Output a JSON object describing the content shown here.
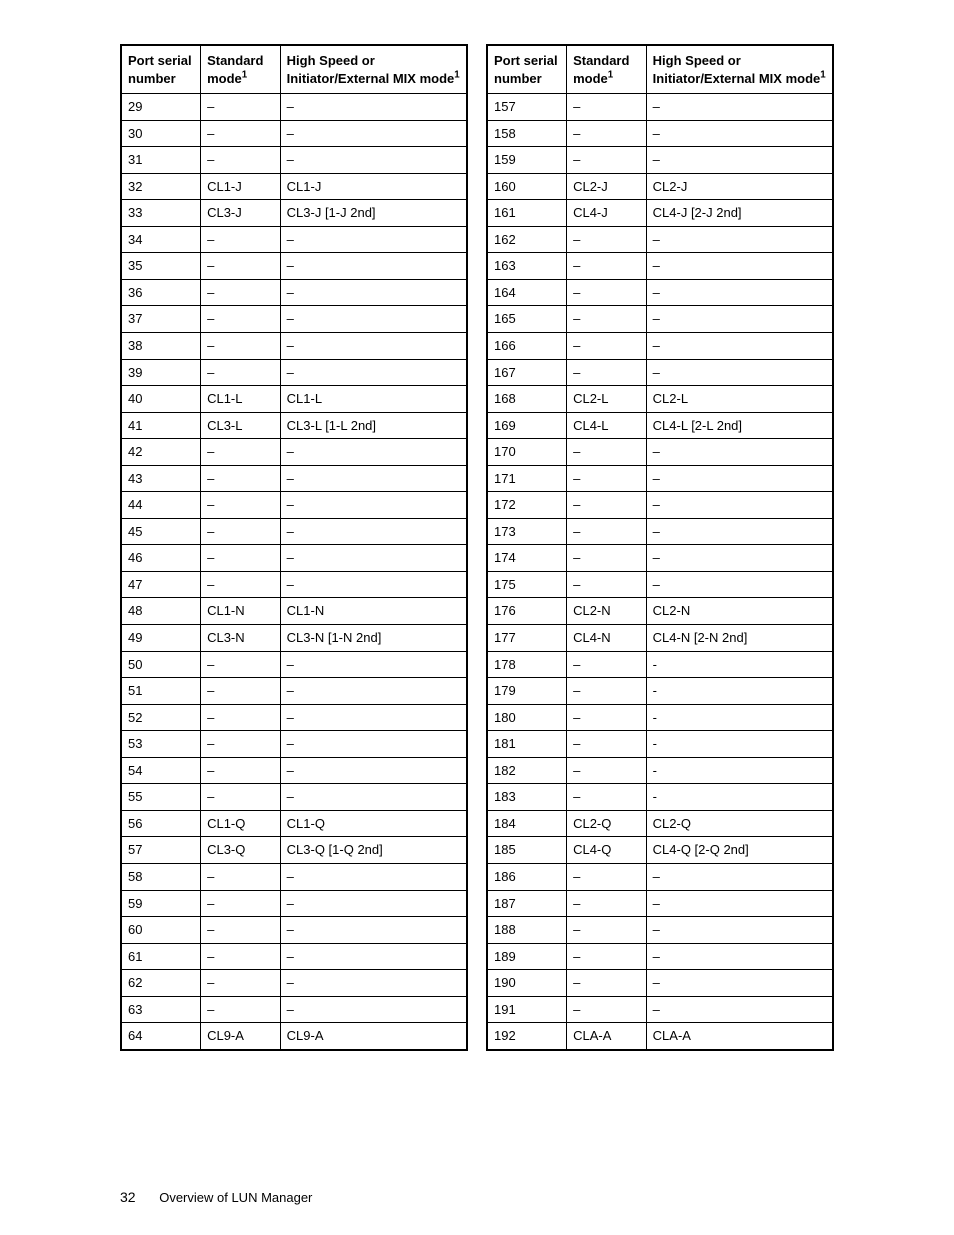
{
  "table": {
    "columns": [
      {
        "label": "Port serial number",
        "width_pct": 23
      },
      {
        "label": "Standard mode",
        "sup": "1",
        "width_pct": 23
      },
      {
        "label": "High Speed or Initiator/External MIX mode",
        "sup": "1",
        "width_pct": 54
      }
    ],
    "dash": "–",
    "dot": "-",
    "left_rows": [
      {
        "n": "29",
        "std": "–",
        "mix": "–"
      },
      {
        "n": "30",
        "std": "–",
        "mix": "–"
      },
      {
        "n": "31",
        "std": "–",
        "mix": "–"
      },
      {
        "n": "32",
        "std": "CL1-J",
        "mix": "CL1-J"
      },
      {
        "n": "33",
        "std": "CL3-J",
        "mix": "CL3-J [1-J 2nd]"
      },
      {
        "n": "34",
        "std": "–",
        "mix": "–"
      },
      {
        "n": "35",
        "std": "–",
        "mix": "–"
      },
      {
        "n": "36",
        "std": "–",
        "mix": "–"
      },
      {
        "n": "37",
        "std": "–",
        "mix": "–"
      },
      {
        "n": "38",
        "std": "–",
        "mix": "–"
      },
      {
        "n": "39",
        "std": "–",
        "mix": "–"
      },
      {
        "n": "40",
        "std": "CL1-L",
        "mix": "CL1-L"
      },
      {
        "n": "41",
        "std": "CL3-L",
        "mix": "CL3-L [1-L 2nd]"
      },
      {
        "n": "42",
        "std": "–",
        "mix": "–"
      },
      {
        "n": "43",
        "std": "–",
        "mix": "–"
      },
      {
        "n": "44",
        "std": "–",
        "mix": "–"
      },
      {
        "n": "45",
        "std": "–",
        "mix": "–"
      },
      {
        "n": "46",
        "std": "–",
        "mix": "–"
      },
      {
        "n": "47",
        "std": "–",
        "mix": "–"
      },
      {
        "n": "48",
        "std": "CL1-N",
        "mix": "CL1-N"
      },
      {
        "n": "49",
        "std": "CL3-N",
        "mix": "CL3-N [1-N 2nd]"
      },
      {
        "n": "50",
        "std": "–",
        "mix": "–"
      },
      {
        "n": "51",
        "std": "–",
        "mix": "–"
      },
      {
        "n": "52",
        "std": "–",
        "mix": "–"
      },
      {
        "n": "53",
        "std": "–",
        "mix": "–"
      },
      {
        "n": "54",
        "std": "–",
        "mix": "–"
      },
      {
        "n": "55",
        "std": "–",
        "mix": "–"
      },
      {
        "n": "56",
        "std": "CL1-Q",
        "mix": "CL1-Q"
      },
      {
        "n": "57",
        "std": "CL3-Q",
        "mix": "CL3-Q [1-Q 2nd]"
      },
      {
        "n": "58",
        "std": "–",
        "mix": "–"
      },
      {
        "n": "59",
        "std": "–",
        "mix": "–"
      },
      {
        "n": "60",
        "std": "–",
        "mix": "–"
      },
      {
        "n": "61",
        "std": "–",
        "mix": "–"
      },
      {
        "n": "62",
        "std": "–",
        "mix": "–"
      },
      {
        "n": "63",
        "std": "–",
        "mix": "–"
      },
      {
        "n": "64",
        "std": "CL9-A",
        "mix": "CL9-A"
      }
    ],
    "right_rows": [
      {
        "n": "157",
        "std": "–",
        "mix": "–"
      },
      {
        "n": "158",
        "std": "–",
        "mix": "–"
      },
      {
        "n": "159",
        "std": "–",
        "mix": "–"
      },
      {
        "n": "160",
        "std": "CL2-J",
        "mix": "CL2-J"
      },
      {
        "n": "161",
        "std": "CL4-J",
        "mix": "CL4-J [2-J 2nd]"
      },
      {
        "n": "162",
        "std": "–",
        "mix": "–"
      },
      {
        "n": "163",
        "std": "–",
        "mix": "–"
      },
      {
        "n": "164",
        "std": "–",
        "mix": "–"
      },
      {
        "n": "165",
        "std": "–",
        "mix": "–"
      },
      {
        "n": "166",
        "std": "–",
        "mix": "–"
      },
      {
        "n": "167",
        "std": "–",
        "mix": "–"
      },
      {
        "n": "168",
        "std": "CL2-L",
        "mix": "CL2-L"
      },
      {
        "n": "169",
        "std": "CL4-L",
        "mix": "CL4-L [2-L 2nd]"
      },
      {
        "n": "170",
        "std": "–",
        "mix": "–"
      },
      {
        "n": "171",
        "std": "–",
        "mix": "–"
      },
      {
        "n": "172",
        "std": "–",
        "mix": "–"
      },
      {
        "n": "173",
        "std": "–",
        "mix": "–"
      },
      {
        "n": "174",
        "std": "–",
        "mix": "–"
      },
      {
        "n": "175",
        "std": "–",
        "mix": "–"
      },
      {
        "n": "176",
        "std": "CL2-N",
        "mix": "CL2-N"
      },
      {
        "n": "177",
        "std": "CL4-N",
        "mix": "CL4-N [2-N 2nd]"
      },
      {
        "n": "178",
        "std": "–",
        "mix": "-"
      },
      {
        "n": "179",
        "std": "–",
        "mix": "-"
      },
      {
        "n": "180",
        "std": "–",
        "mix": "-"
      },
      {
        "n": "181",
        "std": "–",
        "mix": "-"
      },
      {
        "n": "182",
        "std": "–",
        "mix": "-"
      },
      {
        "n": "183",
        "std": "–",
        "mix": "-"
      },
      {
        "n": "184",
        "std": "CL2-Q",
        "mix": "CL2-Q"
      },
      {
        "n": "185",
        "std": "CL4-Q",
        "mix": "CL4-Q [2-Q 2nd]"
      },
      {
        "n": "186",
        "std": "–",
        "mix": "–"
      },
      {
        "n": "187",
        "std": "–",
        "mix": "–"
      },
      {
        "n": "188",
        "std": "–",
        "mix": "–"
      },
      {
        "n": "189",
        "std": "–",
        "mix": "–"
      },
      {
        "n": "190",
        "std": "–",
        "mix": "–"
      },
      {
        "n": "191",
        "std": "–",
        "mix": "–"
      },
      {
        "n": "192",
        "std": "CLA-A",
        "mix": "CLA-A"
      }
    ]
  },
  "footer": {
    "page_number": "32",
    "section_title": "Overview of LUN Manager"
  }
}
